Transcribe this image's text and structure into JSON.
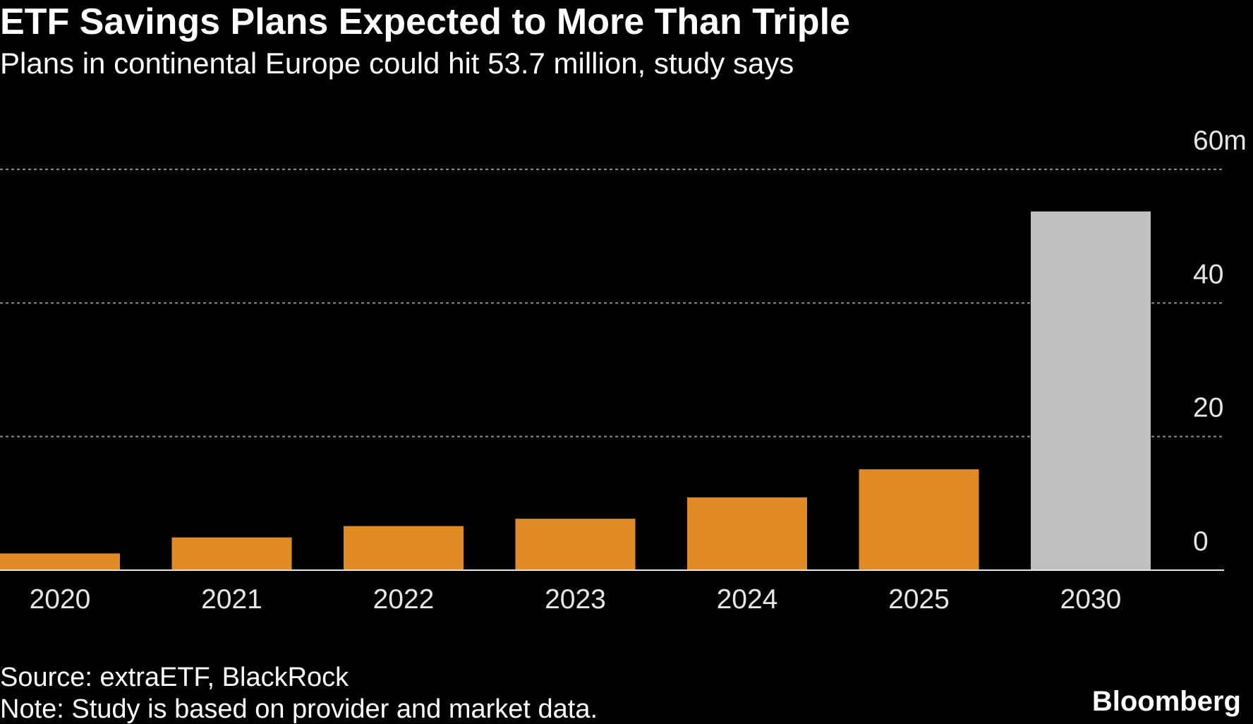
{
  "chart_data": {
    "type": "bar",
    "title": "ETF Savings Plans Expected to More Than Triple",
    "subtitle": "Plans in continental Europe could hit 53.7 million, study says",
    "categories": [
      "2020",
      "2021",
      "2022",
      "2023",
      "2024",
      "2025",
      "2030"
    ],
    "values": [
      2.5,
      4.9,
      6.6,
      7.7,
      10.9,
      15.1,
      53.7
    ],
    "colors": [
      "#e08b26",
      "#e08b26",
      "#e08b26",
      "#e08b26",
      "#e08b26",
      "#e08b26",
      "#c0c0c0"
    ],
    "ylim": [
      0,
      60
    ],
    "yticks": [
      0,
      20,
      40,
      {
        "value": 60,
        "label": "60m"
      }
    ],
    "grid": true,
    "source": "Source: extraETF, BlackRock",
    "note": "Note: Study is based on provider and market data.",
    "brand": "Bloomberg"
  }
}
